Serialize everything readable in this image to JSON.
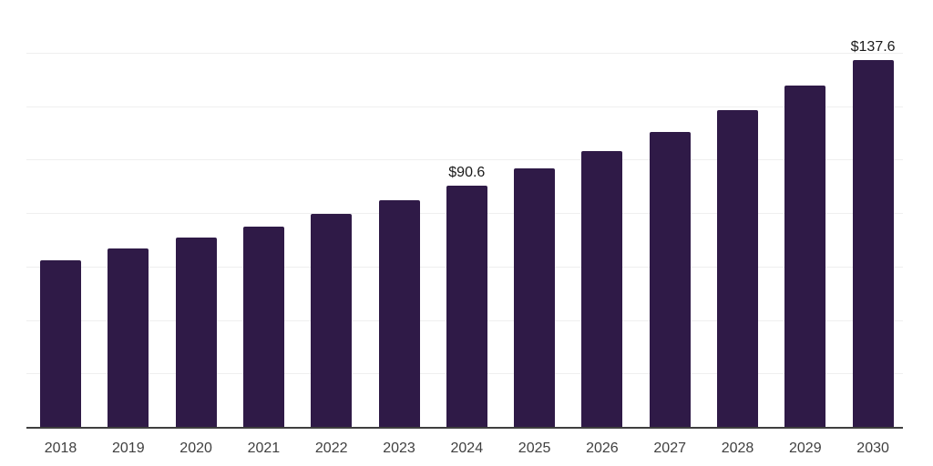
{
  "chart_data": {
    "type": "bar",
    "title": "",
    "xlabel": "",
    "ylabel": "",
    "categories": [
      "2018",
      "2019",
      "2020",
      "2021",
      "2022",
      "2023",
      "2024",
      "2025",
      "2026",
      "2027",
      "2028",
      "2029",
      "2030"
    ],
    "values": [
      62.8,
      66.9,
      71.0,
      75.4,
      80.0,
      85.0,
      90.6,
      96.9,
      103.4,
      110.5,
      118.7,
      127.9,
      137.6
    ],
    "value_labels": [
      null,
      null,
      null,
      null,
      null,
      null,
      "$90.6",
      null,
      null,
      null,
      null,
      null,
      "$137.6"
    ],
    "ylim": [
      0,
      160
    ],
    "gridline_step": 20,
    "grid": "horizontal-only",
    "y_tick_labels_visible": false,
    "legend": "none",
    "colors": {
      "bar": "#2f1a47",
      "gridline": "#efefef",
      "axis_line": "#3f3f3f",
      "tick_label": "#404040",
      "data_label": "#1a1a1a",
      "background": "#ffffff"
    }
  }
}
